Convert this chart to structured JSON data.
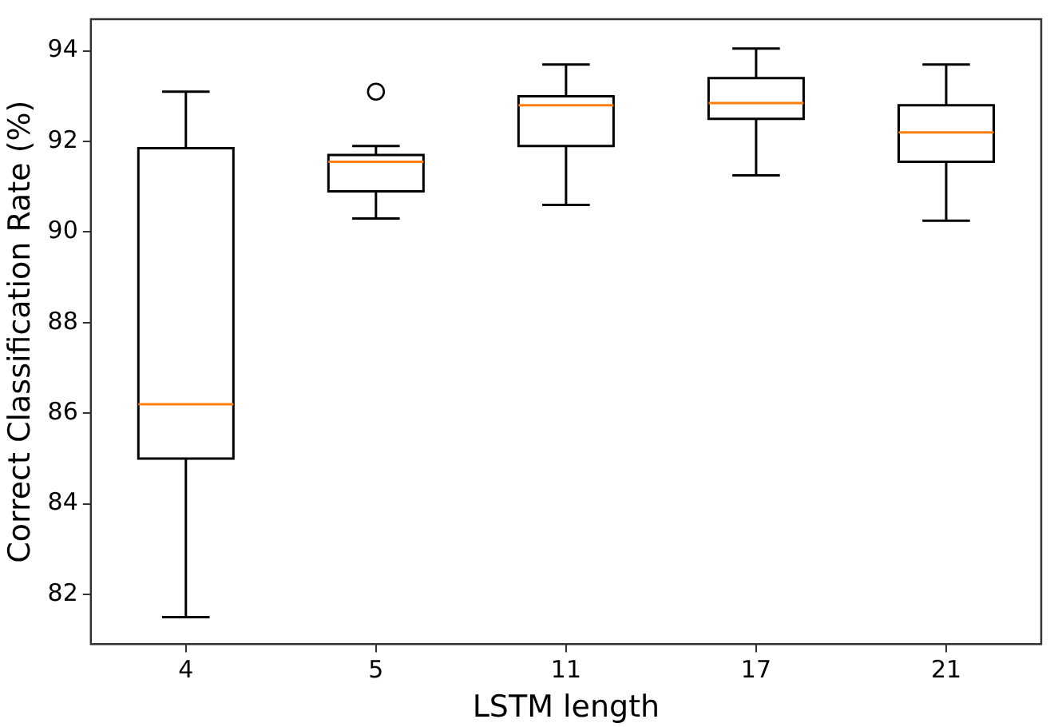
{
  "chart_data": {
    "type": "box",
    "xlabel": "LSTM length",
    "ylabel": "Correct Classification Rate (%)",
    "categories": [
      "4",
      "5",
      "11",
      "17",
      "21"
    ],
    "boxes": [
      {
        "low": 81.5,
        "q1": 85.0,
        "median": 86.2,
        "q3": 91.85,
        "high": 93.1
      },
      {
        "low": 90.3,
        "q1": 90.9,
        "median": 91.55,
        "q3": 91.7,
        "high": 91.9,
        "outliers": [
          93.1
        ]
      },
      {
        "low": 90.6,
        "q1": 91.9,
        "median": 92.8,
        "q3": 93.0,
        "high": 93.7
      },
      {
        "low": 91.25,
        "q1": 92.5,
        "median": 92.85,
        "q3": 93.4,
        "high": 94.05
      },
      {
        "low": 90.25,
        "q1": 91.55,
        "median": 92.2,
        "q3": 92.8,
        "high": 93.7
      }
    ],
    "color": "#000000",
    "ylim": [
      80.9,
      94.7
    ],
    "yticks": [
      82,
      84,
      86,
      88,
      90,
      92,
      94
    ],
    "grid": false,
    "legend": false
  }
}
